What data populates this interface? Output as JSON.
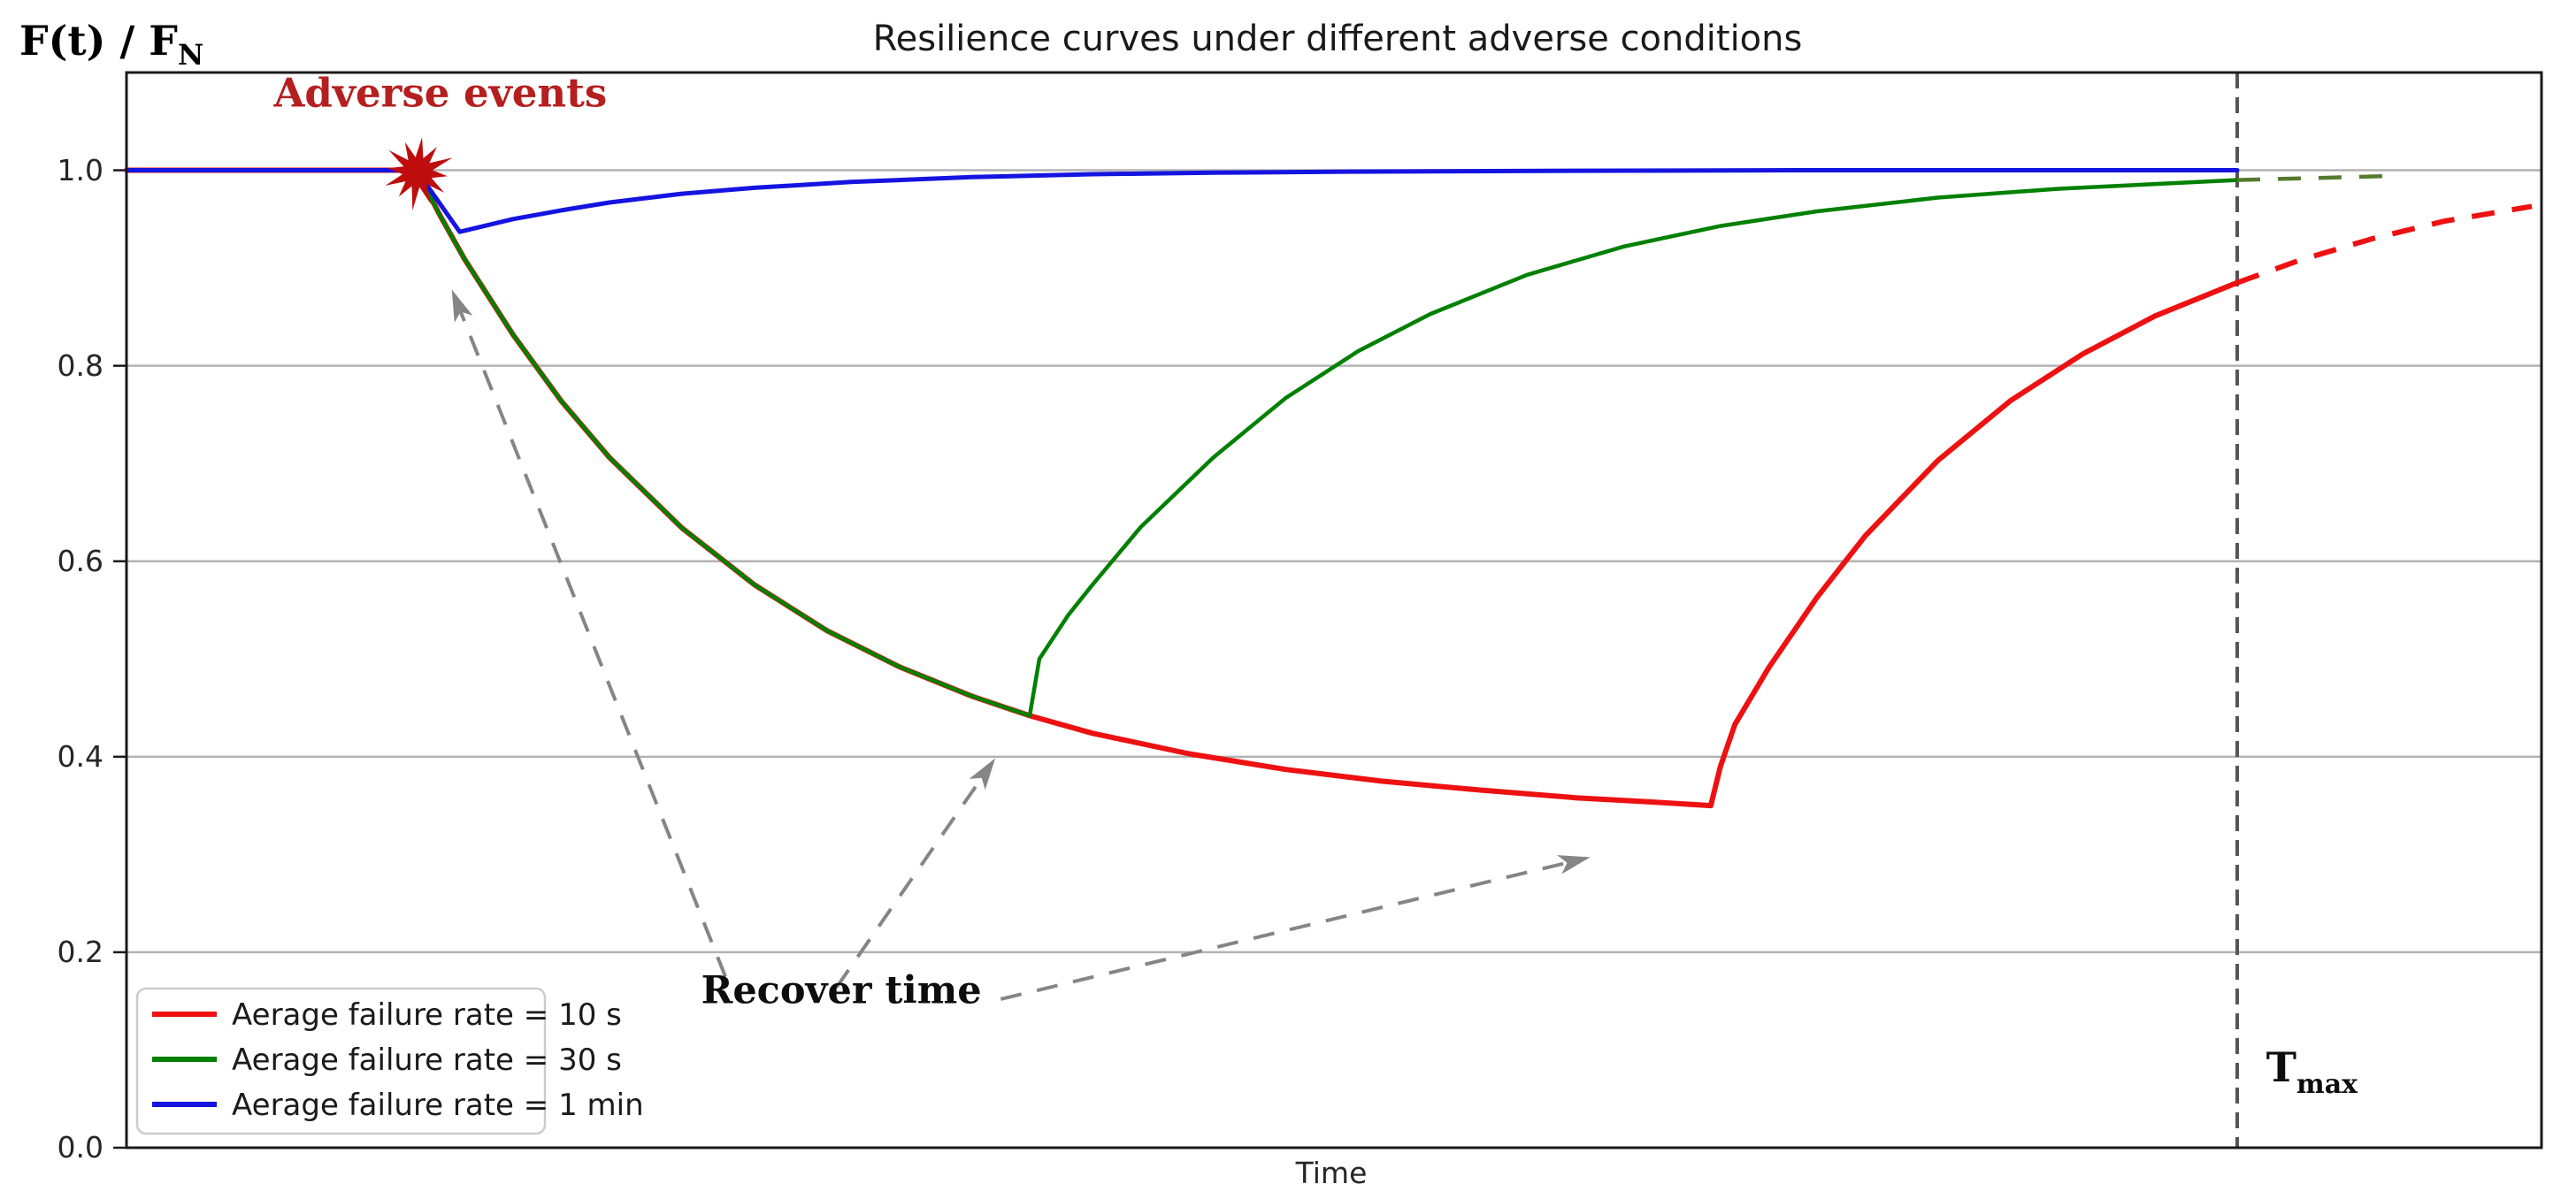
{
  "figure": {
    "title": "Resilience curves under different adverse conditions",
    "ylabel": {
      "main": "F(t) / F",
      "sub": "N"
    },
    "xlabel": "Time",
    "background": "#ffffff",
    "spine_color": "#1a1a1a",
    "grid_color": "#b3b3b3",
    "tick_label_color": "#262626"
  },
  "chart_data": {
    "type": "line",
    "title": "Resilience curves under different adverse conditions",
    "xlabel": "Time",
    "ylabel": "F(t) / F_N",
    "xlim": [
      0,
      100
    ],
    "ylim": [
      0,
      1.1
    ],
    "grid": "horizontal",
    "legend_position": "lower-left",
    "yticks": [
      "0.0",
      "0.2",
      "0.4",
      "0.6",
      "0.8",
      "1.0"
    ],
    "ytick_values": [
      0.0,
      0.2,
      0.4,
      0.6,
      0.8,
      1.0
    ],
    "tmax": {
      "x": 87.4,
      "line_color": "#555555"
    },
    "series": [
      {
        "name": "Aerage failure rate = 10 s",
        "color": "#ee1111",
        "dashed_color": "#ee1111",
        "solid": [
          [
            0,
            1
          ],
          [
            12,
            1
          ],
          [
            13,
            0.953
          ],
          [
            14,
            0.909
          ],
          [
            16,
            0.832
          ],
          [
            18,
            0.764
          ],
          [
            20,
            0.706
          ],
          [
            23,
            0.634
          ],
          [
            26,
            0.576
          ],
          [
            29,
            0.529
          ],
          [
            32,
            0.492
          ],
          [
            35,
            0.462
          ],
          [
            37.4,
            0.442
          ],
          [
            40,
            0.424
          ],
          [
            44,
            0.403
          ],
          [
            48,
            0.387
          ],
          [
            52,
            0.375
          ],
          [
            56,
            0.366
          ],
          [
            60,
            0.358
          ],
          [
            63,
            0.354
          ],
          [
            65.6,
            0.35
          ],
          [
            66,
            0.39
          ],
          [
            66.6,
            0.433
          ],
          [
            68,
            0.491
          ],
          [
            70,
            0.563
          ],
          [
            72,
            0.626
          ],
          [
            75,
            0.703
          ],
          [
            78,
            0.764
          ],
          [
            81,
            0.812
          ],
          [
            84,
            0.851
          ],
          [
            87.4,
            0.885
          ]
        ],
        "dashed": [
          [
            87.4,
            0.885
          ],
          [
            90,
            0.908
          ],
          [
            93,
            0.93
          ],
          [
            96,
            0.948
          ],
          [
            99.6,
            0.963
          ]
        ]
      },
      {
        "name": "Aerage failure rate = 30 s",
        "color": "#008000",
        "dashed_color": "#557a2d",
        "solid": [
          [
            0,
            1
          ],
          [
            12,
            1
          ],
          [
            13,
            0.953
          ],
          [
            14,
            0.909
          ],
          [
            16,
            0.832
          ],
          [
            18,
            0.764
          ],
          [
            20,
            0.706
          ],
          [
            23,
            0.634
          ],
          [
            26,
            0.576
          ],
          [
            29,
            0.529
          ],
          [
            32,
            0.492
          ],
          [
            35,
            0.462
          ],
          [
            37.4,
            0.442
          ],
          [
            37.8,
            0.5
          ],
          [
            39,
            0.545
          ],
          [
            40,
            0.576
          ],
          [
            42,
            0.635
          ],
          [
            45,
            0.706
          ],
          [
            48,
            0.767
          ],
          [
            51,
            0.815
          ],
          [
            54,
            0.853
          ],
          [
            58,
            0.893
          ],
          [
            62,
            0.922
          ],
          [
            66,
            0.943
          ],
          [
            70,
            0.958
          ],
          [
            75,
            0.972
          ],
          [
            80,
            0.981
          ],
          [
            87.4,
            0.99
          ]
        ],
        "dashed": [
          [
            87.4,
            0.99
          ],
          [
            90.5,
            0.992
          ],
          [
            93.5,
            0.994
          ]
        ]
      },
      {
        "name": "Aerage failure rate = 1 min",
        "color": "#1414e0",
        "dashed_color": "#1414e0",
        "solid": [
          [
            0,
            1
          ],
          [
            12,
            1
          ],
          [
            13.8,
            0.937
          ],
          [
            16,
            0.95
          ],
          [
            18,
            0.959
          ],
          [
            20,
            0.967
          ],
          [
            23,
            0.976
          ],
          [
            26,
            0.982
          ],
          [
            30,
            0.988
          ],
          [
            35,
            0.993
          ],
          [
            40,
            0.996
          ],
          [
            45,
            0.9975
          ],
          [
            50,
            0.9985
          ],
          [
            60,
            0.9995
          ],
          [
            70,
            1.0
          ],
          [
            87.4,
            1.0
          ]
        ],
        "dashed": []
      }
    ],
    "annotations": {
      "adverse_events": {
        "text": "Adverse events",
        "color": "#b51f1f",
        "x": 13.0,
        "y": 1.065
      },
      "event_marker": {
        "x": 12.05,
        "y": 0.998,
        "color": "#bf0d0d",
        "points": 12,
        "outer_r": 38,
        "inner_r": 17
      },
      "recover_time": {
        "text": "Recover time",
        "color": "#0d0d0d",
        "x": 29.6,
        "y": 0.148
      },
      "tmax_label": {
        "main": "T",
        "sub": "max",
        "color": "#0d0d0d",
        "x": 88.6,
        "y": 0.068
      },
      "arrow_color": "#858585",
      "arrows": [
        {
          "from": [
            24.8,
            0.175
          ],
          "to": [
            13.55,
            0.873
          ]
        },
        {
          "from": [
            29.4,
            0.164
          ],
          "to": [
            35.85,
            0.394
          ]
        },
        {
          "from": [
            36.2,
            0.152
          ],
          "to": [
            60.4,
            0.296
          ]
        }
      ]
    }
  },
  "legend": {
    "border_color": "#cccccc",
    "items": [
      {
        "label": "Aerage failure rate = 10 s",
        "color": "#ee1111"
      },
      {
        "label": "Aerage failure rate = 30 s",
        "color": "#008000"
      },
      {
        "label": "Aerage failure rate = 1 min",
        "color": "#1414e0"
      }
    ]
  }
}
